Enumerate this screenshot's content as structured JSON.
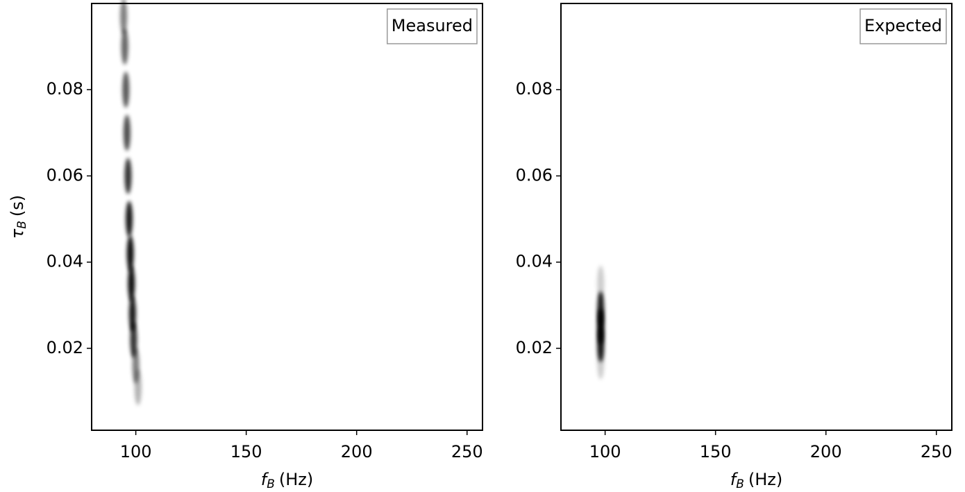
{
  "chart_data": [
    {
      "type": "heatmap",
      "annotation": "Measured",
      "xlabel": {
        "symbol": "f",
        "subscript": "B",
        "unit": "(Hz)"
      },
      "ylabel": {
        "symbol": "τ",
        "subscript": "B",
        "unit": "(s)"
      },
      "xlim": [
        80,
        257
      ],
      "ylim": [
        0.001,
        0.1
      ],
      "xticks": [
        100,
        150,
        200,
        250
      ],
      "yticks": [
        0.02,
        0.04,
        0.06,
        0.08
      ],
      "color": "#000000",
      "x": [
        94.5,
        95,
        95.5,
        96,
        96.5,
        97,
        97.5,
        98,
        98.5,
        99,
        100,
        101
      ],
      "y": [
        0.097,
        0.09,
        0.08,
        0.07,
        0.06,
        0.05,
        0.042,
        0.035,
        0.028,
        0.022,
        0.016,
        0.011
      ],
      "values": [
        0.5,
        0.6,
        0.65,
        0.7,
        0.8,
        0.9,
        0.95,
        0.95,
        0.9,
        0.8,
        0.5,
        0.3
      ]
    },
    {
      "type": "heatmap",
      "annotation": "Expected",
      "xlabel": {
        "symbol": "f",
        "subscript": "B",
        "unit": "(Hz)"
      },
      "xlim": [
        80,
        257
      ],
      "ylim": [
        0.001,
        0.1
      ],
      "xticks": [
        100,
        150,
        200,
        250
      ],
      "yticks": [
        0.02,
        0.04,
        0.06,
        0.08
      ],
      "color": "#000000",
      "x": [
        98,
        98,
        98,
        98,
        98
      ],
      "y": [
        0.035,
        0.029,
        0.025,
        0.021,
        0.017
      ],
      "values": [
        0.2,
        0.9,
        1,
        0.9,
        0.2
      ]
    }
  ]
}
